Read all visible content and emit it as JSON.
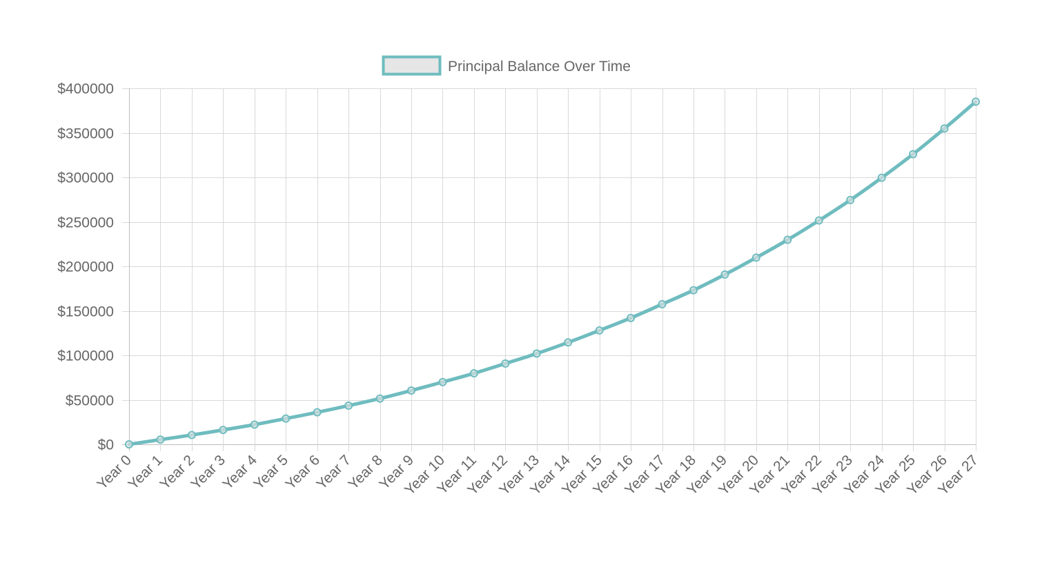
{
  "chart_data": {
    "type": "line",
    "title": "",
    "xlabel": "",
    "ylabel": "",
    "categories": [
      "Year 0",
      "Year 1",
      "Year 2",
      "Year 3",
      "Year 4",
      "Year 5",
      "Year 6",
      "Year 7",
      "Year 8",
      "Year 9",
      "Year 10",
      "Year 11",
      "Year 12",
      "Year 13",
      "Year 14",
      "Year 15",
      "Year 16",
      "Year 17",
      "Year 18",
      "Year 19",
      "Year 20",
      "Year 21",
      "Year 22",
      "Year 23",
      "Year 24",
      "Year 25",
      "Year 26",
      "Year 27"
    ],
    "series": [
      {
        "name": "Principal Balance Over Time",
        "values": [
          0,
          5300,
          10500,
          16200,
          22200,
          29000,
          36000,
          43500,
          51500,
          60500,
          70000,
          79800,
          90800,
          102000,
          114500,
          128000,
          142000,
          157500,
          173200,
          190800,
          209800,
          229800,
          251500,
          274500,
          299500,
          326000,
          354800,
          385000
        ]
      }
    ],
    "ylim": [
      0,
      400000
    ],
    "y_ticks": [
      0,
      50000,
      100000,
      150000,
      200000,
      250000,
      300000,
      350000,
      400000
    ],
    "y_tick_labels": [
      "$0",
      "$50000",
      "$100000",
      "$150000",
      "$200000",
      "$250000",
      "$300000",
      "$350000",
      "$400000"
    ],
    "legend_position": "top",
    "grid": true,
    "colors": {
      "line": "#6fbcbf",
      "legend_fill": "#e6e6e6",
      "grid": "#d9d9d9",
      "text": "#666666"
    }
  }
}
